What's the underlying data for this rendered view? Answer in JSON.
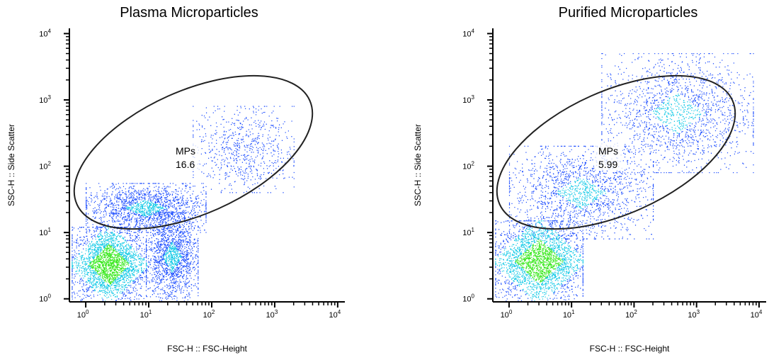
{
  "chart_data": [
    {
      "type": "scatter",
      "title": "Plasma Microparticles",
      "xlabel": "FSC-H :: FSC-Height",
      "ylabel": "SSC-H :: Side Scatter",
      "xscale": "log",
      "yscale": "log",
      "xlim": [
        0.55,
        13000
      ],
      "ylim": [
        0.9,
        12000
      ],
      "x_ticks": [
        {
          "base": "10",
          "exp": "0",
          "value": 1
        },
        {
          "base": "10",
          "exp": "1",
          "value": 10
        },
        {
          "base": "10",
          "exp": "2",
          "value": 100
        },
        {
          "base": "10",
          "exp": "3",
          "value": 1000
        },
        {
          "base": "10",
          "exp": "4",
          "value": 10000
        }
      ],
      "y_ticks": [
        {
          "base": "10",
          "exp": "0",
          "value": 1
        },
        {
          "base": "10",
          "exp": "1",
          "value": 10
        },
        {
          "base": "10",
          "exp": "2",
          "value": 100
        },
        {
          "base": "10",
          "exp": "3",
          "value": 1000
        },
        {
          "base": "10",
          "exp": "4",
          "value": 10000
        }
      ],
      "colormap": "density (blue → cyan → green)",
      "gate": {
        "name": "MPs",
        "value": "16.6",
        "shape": "ellipse"
      },
      "populations": [
        {
          "x_range": [
            0.6,
            9
          ],
          "y_range": [
            0.9,
            12
          ],
          "density": "high"
        },
        {
          "x_range": [
            9,
            60
          ],
          "y_range": [
            0.9,
            20
          ],
          "density": "medium"
        },
        {
          "x_range": [
            1,
            80
          ],
          "y_range": [
            10,
            55
          ],
          "density": "medium"
        },
        {
          "x_range": [
            50,
            2000
          ],
          "y_range": [
            40,
            800
          ],
          "density": "low"
        }
      ]
    },
    {
      "type": "scatter",
      "title": "Purified Microparticles",
      "xlabel": "FSC-H :: FSC-Height",
      "ylabel": "SSC-H :: Side Scatter",
      "xscale": "log",
      "yscale": "log",
      "xlim": [
        0.55,
        13000
      ],
      "ylim": [
        0.9,
        12000
      ],
      "x_ticks": [
        {
          "base": "10",
          "exp": "0",
          "value": 1
        },
        {
          "base": "10",
          "exp": "1",
          "value": 10
        },
        {
          "base": "10",
          "exp": "2",
          "value": 100
        },
        {
          "base": "10",
          "exp": "3",
          "value": 1000
        },
        {
          "base": "10",
          "exp": "4",
          "value": 10000
        }
      ],
      "y_ticks": [
        {
          "base": "10",
          "exp": "0",
          "value": 1
        },
        {
          "base": "10",
          "exp": "1",
          "value": 10
        },
        {
          "base": "10",
          "exp": "2",
          "value": 100
        },
        {
          "base": "10",
          "exp": "3",
          "value": 1000
        },
        {
          "base": "10",
          "exp": "4",
          "value": 10000
        }
      ],
      "colormap": "density (blue → cyan → green)",
      "gate": {
        "name": "MPs",
        "value": "5.99",
        "shape": "ellipse"
      },
      "populations": [
        {
          "x_range": [
            0.6,
            15
          ],
          "y_range": [
            0.9,
            15
          ],
          "density": "high"
        },
        {
          "x_range": [
            1,
            200
          ],
          "y_range": [
            8,
            200
          ],
          "density": "medium"
        },
        {
          "x_range": [
            30,
            8000
          ],
          "y_range": [
            80,
            5000
          ],
          "density": "medium"
        }
      ]
    }
  ]
}
